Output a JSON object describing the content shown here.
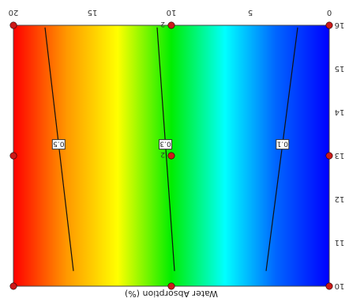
{
  "chart_data": {
    "type": "heatmap",
    "subtype": "contour",
    "orientation": "image shown upside down (rotated 180 degrees)",
    "title": "",
    "xlabel": "Water Absorption (%)",
    "ylabel": "",
    "x_tick_labels": [
      "10",
      "11",
      "12",
      "13",
      "14",
      "15",
      "16"
    ],
    "y_tick_labels": [
      "0",
      "5",
      "10",
      "15",
      "20"
    ],
    "xlim": [
      10,
      16
    ],
    "ylim": [
      0,
      20
    ],
    "color_scale": [
      "#ff0000",
      "#ff9900",
      "#ffff00",
      "#00ee00",
      "#00ffff",
      "#0066ff",
      "#0000ff"
    ],
    "contours": [
      {
        "label": "0.1",
        "points": [
          [
            10.35,
            4.0
          ],
          [
            15.95,
            2.0
          ]
        ]
      },
      {
        "label": "0.3",
        "points": [
          [
            10.35,
            9.8
          ],
          [
            15.95,
            10.9
          ]
        ]
      },
      {
        "label": "0.5",
        "points": [
          [
            10.35,
            16.2
          ],
          [
            15.95,
            18.0
          ]
        ]
      }
    ],
    "design_points": [
      {
        "x": 10,
        "y": 0,
        "label": ""
      },
      {
        "x": 10,
        "y": 10,
        "label": ""
      },
      {
        "x": 10,
        "y": 20,
        "label": ""
      },
      {
        "x": 13,
        "y": 0,
        "label": ""
      },
      {
        "x": 13,
        "y": 10,
        "label": "2"
      },
      {
        "x": 13,
        "y": 20,
        "label": ""
      },
      {
        "x": 16,
        "y": 0,
        "label": ""
      },
      {
        "x": 16,
        "y": 10,
        "label": "2"
      },
      {
        "x": 16,
        "y": 20,
        "label": ""
      }
    ],
    "grid": false,
    "legend": "none"
  }
}
